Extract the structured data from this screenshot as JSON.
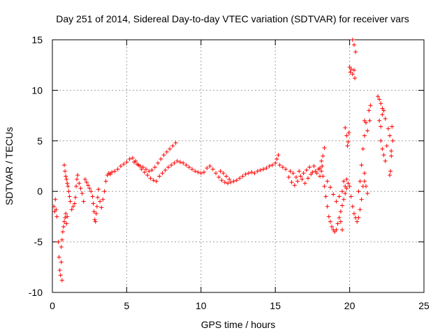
{
  "chart_data": {
    "type": "scatter",
    "title": "Day 251 of 2014, Sidereal Day-to-day VTEC variation (SDTVAR) for receiver vars",
    "xlabel": "GPS time / hours",
    "ylabel": "SDTVAR / TECUs",
    "xlim": [
      0,
      25
    ],
    "ylim": [
      -10,
      15
    ],
    "xticks": [
      "0",
      "5",
      "10",
      "15",
      "20",
      "25"
    ],
    "yticks": [
      "-10",
      "-5",
      "0",
      "5",
      "10",
      "15"
    ],
    "grid": true,
    "marker": "+",
    "color": "#ff0000",
    "series": [
      {
        "name": "SDTVAR",
        "points": [
          [
            0.1,
            -1.5
          ],
          [
            0.15,
            -2.0
          ],
          [
            0.2,
            -0.8
          ],
          [
            0.25,
            -1.8
          ],
          [
            0.3,
            -2.5
          ],
          [
            0.4,
            -5.0
          ],
          [
            0.45,
            -6.5
          ],
          [
            0.5,
            -7.8
          ],
          [
            0.55,
            -8.3
          ],
          [
            0.6,
            -7.0
          ],
          [
            0.65,
            -8.8
          ],
          [
            0.6,
            -5.5
          ],
          [
            0.65,
            -4.8
          ],
          [
            0.7,
            -4.0
          ],
          [
            0.75,
            -3.5
          ],
          [
            0.8,
            -3.0
          ],
          [
            0.85,
            -2.6
          ],
          [
            0.9,
            -2.2
          ],
          [
            0.95,
            -3.2
          ],
          [
            1.0,
            -2.5
          ],
          [
            0.8,
            2.6
          ],
          [
            0.85,
            2.0
          ],
          [
            0.9,
            1.5
          ],
          [
            0.95,
            1.2
          ],
          [
            1.0,
            0.8
          ],
          [
            1.05,
            0.5
          ],
          [
            1.1,
            0.0
          ],
          [
            1.15,
            -0.5
          ],
          [
            1.2,
            -1.0
          ],
          [
            1.3,
            -1.8
          ],
          [
            1.4,
            -1.5
          ],
          [
            1.5,
            -1.2
          ],
          [
            1.55,
            -0.6
          ],
          [
            1.6,
            0.5
          ],
          [
            1.65,
            1.2
          ],
          [
            1.7,
            1.6
          ],
          [
            1.8,
            0.8
          ],
          [
            1.9,
            0.3
          ],
          [
            2.0,
            -0.2
          ],
          [
            2.1,
            -1.0
          ],
          [
            2.2,
            1.2
          ],
          [
            2.3,
            0.9
          ],
          [
            2.4,
            0.6
          ],
          [
            2.5,
            0.3
          ],
          [
            2.6,
            0.0
          ],
          [
            2.7,
            -0.5
          ],
          [
            2.75,
            -1.2
          ],
          [
            2.8,
            -2.0
          ],
          [
            2.85,
            -2.8
          ],
          [
            2.9,
            -3.0
          ],
          [
            2.95,
            -2.2
          ],
          [
            3.0,
            -1.5
          ],
          [
            3.05,
            -0.6
          ],
          [
            3.1,
            0.2
          ],
          [
            3.2,
            -1.0
          ],
          [
            3.3,
            -1.6
          ],
          [
            3.4,
            -0.8
          ],
          [
            3.5,
            0.0
          ],
          [
            3.6,
            1.0
          ],
          [
            3.7,
            1.6
          ],
          [
            3.8,
            1.8
          ],
          [
            3.9,
            1.7
          ],
          [
            4.0,
            1.9
          ],
          [
            4.2,
            2.0
          ],
          [
            4.4,
            2.2
          ],
          [
            4.6,
            2.5
          ],
          [
            4.8,
            2.7
          ],
          [
            5.0,
            2.9
          ],
          [
            5.2,
            3.2
          ],
          [
            5.4,
            3.3
          ],
          [
            5.6,
            3.0
          ],
          [
            5.8,
            2.6
          ],
          [
            6.0,
            2.2
          ],
          [
            6.2,
            1.9
          ],
          [
            6.4,
            1.6
          ],
          [
            6.6,
            1.3
          ],
          [
            6.8,
            1.1
          ],
          [
            7.0,
            1.0
          ],
          [
            5.5,
            2.9
          ],
          [
            5.7,
            2.7
          ],
          [
            5.9,
            2.5
          ],
          [
            6.1,
            2.4
          ],
          [
            6.3,
            2.2
          ],
          [
            6.5,
            2.0
          ],
          [
            6.7,
            2.1
          ],
          [
            6.9,
            2.4
          ],
          [
            7.1,
            2.8
          ],
          [
            7.3,
            3.2
          ],
          [
            7.5,
            3.6
          ],
          [
            7.7,
            3.9
          ],
          [
            7.9,
            4.2
          ],
          [
            8.1,
            4.5
          ],
          [
            8.3,
            4.8
          ],
          [
            7.2,
            1.5
          ],
          [
            7.4,
            1.8
          ],
          [
            7.6,
            2.1
          ],
          [
            7.8,
            2.4
          ],
          [
            8.0,
            2.6
          ],
          [
            8.2,
            2.8
          ],
          [
            8.4,
            3.0
          ],
          [
            8.6,
            2.9
          ],
          [
            8.8,
            2.8
          ],
          [
            9.0,
            2.6
          ],
          [
            9.2,
            2.4
          ],
          [
            9.4,
            2.2
          ],
          [
            9.6,
            2.0
          ],
          [
            9.8,
            1.9
          ],
          [
            10.0,
            1.8
          ],
          [
            10.2,
            1.9
          ],
          [
            10.4,
            2.3
          ],
          [
            10.6,
            2.5
          ],
          [
            10.8,
            2.2
          ],
          [
            11.0,
            1.8
          ],
          [
            11.2,
            1.4
          ],
          [
            11.4,
            1.1
          ],
          [
            11.6,
            0.9
          ],
          [
            11.8,
            0.8
          ],
          [
            12.0,
            0.9
          ],
          [
            11.3,
            2.0
          ],
          [
            11.5,
            1.8
          ],
          [
            11.7,
            1.5
          ],
          [
            11.9,
            1.2
          ],
          [
            12.2,
            1.0
          ],
          [
            12.4,
            1.1
          ],
          [
            12.6,
            1.3
          ],
          [
            12.8,
            1.5
          ],
          [
            13.0,
            1.7
          ],
          [
            13.2,
            1.8
          ],
          [
            13.4,
            1.9
          ],
          [
            13.6,
            1.8
          ],
          [
            13.8,
            2.0
          ],
          [
            14.0,
            2.1
          ],
          [
            14.2,
            2.2
          ],
          [
            14.4,
            2.3
          ],
          [
            14.6,
            2.5
          ],
          [
            14.8,
            2.6
          ],
          [
            15.0,
            2.8
          ],
          [
            15.1,
            3.2
          ],
          [
            15.2,
            3.6
          ],
          [
            15.3,
            2.6
          ],
          [
            15.5,
            2.4
          ],
          [
            15.7,
            2.2
          ],
          [
            15.9,
            1.4
          ],
          [
            16.1,
            0.9
          ],
          [
            16.3,
            0.6
          ],
          [
            16.5,
            1.0
          ],
          [
            16.7,
            1.5
          ],
          [
            16.9,
            1.8
          ],
          [
            17.1,
            2.1
          ],
          [
            17.3,
            2.4
          ],
          [
            17.5,
            1.9
          ],
          [
            17.7,
            2.0
          ],
          [
            17.9,
            2.2
          ],
          [
            18.0,
            2.3
          ],
          [
            16.0,
            2.0
          ],
          [
            16.2,
            1.8
          ],
          [
            16.4,
            1.4
          ],
          [
            16.6,
            2.0
          ],
          [
            16.8,
            1.2
          ],
          [
            17.0,
            0.8
          ],
          [
            17.2,
            1.3
          ],
          [
            17.4,
            1.7
          ],
          [
            17.6,
            2.5
          ],
          [
            17.8,
            1.8
          ],
          [
            18.0,
            1.5
          ],
          [
            18.1,
            2.0
          ],
          [
            18.1,
            3.0
          ],
          [
            18.2,
            3.5
          ],
          [
            18.3,
            4.3
          ],
          [
            18.15,
            2.5
          ],
          [
            18.2,
            1.5
          ],
          [
            18.3,
            0.5
          ],
          [
            18.4,
            -0.5
          ],
          [
            18.5,
            -1.5
          ],
          [
            18.6,
            -2.5
          ],
          [
            18.7,
            -3.0
          ],
          [
            18.8,
            -3.5
          ],
          [
            18.9,
            -3.8
          ],
          [
            19.0,
            -4.0
          ],
          [
            19.1,
            -3.8
          ],
          [
            19.2,
            -3.2
          ],
          [
            19.3,
            -2.6
          ],
          [
            19.4,
            -2.0
          ],
          [
            19.5,
            -1.4
          ],
          [
            19.6,
            -0.8
          ],
          [
            19.7,
            -0.2
          ],
          [
            19.8,
            0.3
          ],
          [
            18.5,
            1.0
          ],
          [
            18.7,
            0.4
          ],
          [
            18.9,
            -0.3
          ],
          [
            19.1,
            -1.0
          ],
          [
            19.3,
            -0.5
          ],
          [
            19.5,
            0.0
          ],
          [
            19.7,
            0.5
          ],
          [
            19.9,
            0.8
          ],
          [
            19.4,
            -3.0
          ],
          [
            19.5,
            -3.8
          ],
          [
            19.6,
            1.0
          ],
          [
            19.8,
            1.2
          ],
          [
            19.7,
            6.3
          ],
          [
            19.8,
            5.5
          ],
          [
            19.9,
            4.9
          ],
          [
            19.85,
            4.5
          ],
          [
            19.95,
            5.8
          ],
          [
            20.0,
            12.3
          ],
          [
            20.05,
            11.8
          ],
          [
            20.1,
            12.1
          ],
          [
            20.2,
            11.6
          ],
          [
            20.3,
            12.0
          ],
          [
            20.35,
            11.2
          ],
          [
            20.2,
            15.0
          ],
          [
            20.3,
            14.5
          ],
          [
            20.4,
            13.8
          ],
          [
            20.0,
            0.5
          ],
          [
            20.1,
            -0.5
          ],
          [
            20.2,
            -1.5
          ],
          [
            20.3,
            -2.2
          ],
          [
            20.4,
            -2.6
          ],
          [
            20.5,
            -3.0
          ],
          [
            20.6,
            -2.6
          ],
          [
            20.7,
            -1.8
          ],
          [
            20.8,
            -0.8
          ],
          [
            20.9,
            0.5
          ],
          [
            21.0,
            1.8
          ],
          [
            20.6,
            0.0
          ],
          [
            20.7,
            1.0
          ],
          [
            20.8,
            2.6
          ],
          [
            20.9,
            4.2
          ],
          [
            21.0,
            5.5
          ],
          [
            21.1,
            6.8
          ],
          [
            21.0,
            7.0
          ],
          [
            21.2,
            6.0
          ],
          [
            21.3,
            8.0
          ],
          [
            21.4,
            8.5
          ],
          [
            21.35,
            7.0
          ],
          [
            21.0,
            1.0
          ],
          [
            21.1,
            0.5
          ],
          [
            21.2,
            -0.2
          ],
          [
            21.9,
            9.4
          ],
          [
            22.0,
            9.1
          ],
          [
            22.1,
            8.7
          ],
          [
            22.2,
            8.2
          ],
          [
            22.0,
            7.0
          ],
          [
            22.1,
            6.4
          ],
          [
            22.2,
            7.6
          ],
          [
            22.3,
            8.0
          ],
          [
            22.4,
            7.2
          ],
          [
            22.1,
            5.0
          ],
          [
            22.2,
            4.2
          ],
          [
            22.3,
            3.6
          ],
          [
            22.4,
            3.0
          ],
          [
            22.5,
            4.5
          ],
          [
            22.6,
            6.2
          ],
          [
            22.7,
            5.5
          ],
          [
            22.8,
            4.0
          ],
          [
            22.75,
            2.0
          ],
          [
            22.7,
            1.6
          ],
          [
            22.8,
            3.5
          ],
          [
            22.85,
            6.4
          ],
          [
            22.9,
            5.0
          ]
        ]
      }
    ]
  }
}
